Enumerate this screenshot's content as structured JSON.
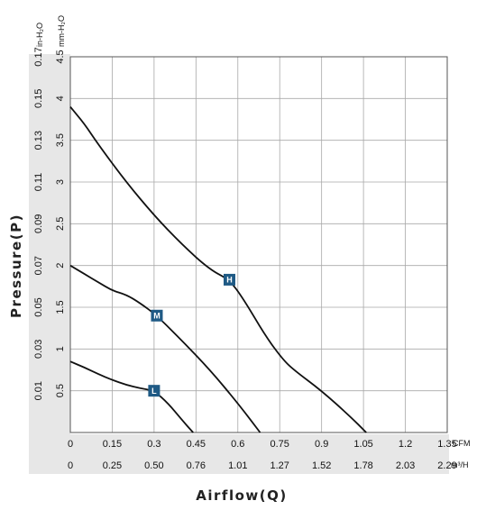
{
  "chart_data": {
    "type": "line",
    "title": "",
    "xlabel": "Airflow(Q)",
    "ylabel": "Pressure(P)",
    "x_unit_primary": "CFM",
    "x_unit_secondary": "m³/H",
    "y_unit_primary": "mm-H₂O",
    "y_unit_secondary": "in-H₂O",
    "xlim": [
      0,
      1.35
    ],
    "ylim": [
      0,
      4.5
    ],
    "x_ticks": [
      "0",
      "0.15",
      "0.3",
      "0.45",
      "0.6",
      "0.75",
      "0.9",
      "1.05",
      "1.2",
      "1.35"
    ],
    "x2_ticks": [
      "0",
      "0.25",
      "0.50",
      "0.76",
      "1.01",
      "1.27",
      "1.52",
      "1.78",
      "2.03",
      "2.29"
    ],
    "y_ticks": [
      "0.5",
      "1",
      "1.5",
      "2",
      "2.5",
      "3",
      "3.5",
      "4",
      "4.5"
    ],
    "y2_ticks": [
      "0.01",
      "0.03",
      "0.05",
      "0.07",
      "0.09",
      "0.11",
      "0.13",
      "0.15",
      "0.17"
    ],
    "grid": true,
    "series": [
      {
        "name": "H",
        "marker": {
          "x": 0.57,
          "y": 1.83
        },
        "x": [
          0,
          0.05,
          0.1,
          0.2,
          0.3,
          0.4,
          0.5,
          0.57,
          0.62,
          0.7,
          0.76,
          0.8,
          0.9,
          1.0,
          1.06
        ],
        "y": [
          3.9,
          3.7,
          3.45,
          3.0,
          2.6,
          2.25,
          1.95,
          1.83,
          1.6,
          1.15,
          0.88,
          0.75,
          0.5,
          0.2,
          0
        ]
      },
      {
        "name": "M",
        "marker": {
          "x": 0.31,
          "y": 1.4
        },
        "x": [
          0,
          0.05,
          0.1,
          0.15,
          0.2,
          0.25,
          0.31,
          0.4,
          0.5,
          0.6,
          0.68
        ],
        "y": [
          2.0,
          1.9,
          1.8,
          1.7,
          1.65,
          1.55,
          1.4,
          1.1,
          0.75,
          0.35,
          0
        ]
      },
      {
        "name": "L",
        "marker": {
          "x": 0.3,
          "y": 0.5
        },
        "x": [
          0,
          0.05,
          0.1,
          0.15,
          0.2,
          0.25,
          0.3,
          0.35,
          0.4,
          0.44
        ],
        "y": [
          0.85,
          0.78,
          0.7,
          0.63,
          0.57,
          0.53,
          0.5,
          0.35,
          0.15,
          0
        ]
      }
    ]
  },
  "colors": {
    "curve": "#111111",
    "marker": "#1f5a85",
    "band": "#e7e7e7",
    "grid": "#a8a8a8"
  }
}
